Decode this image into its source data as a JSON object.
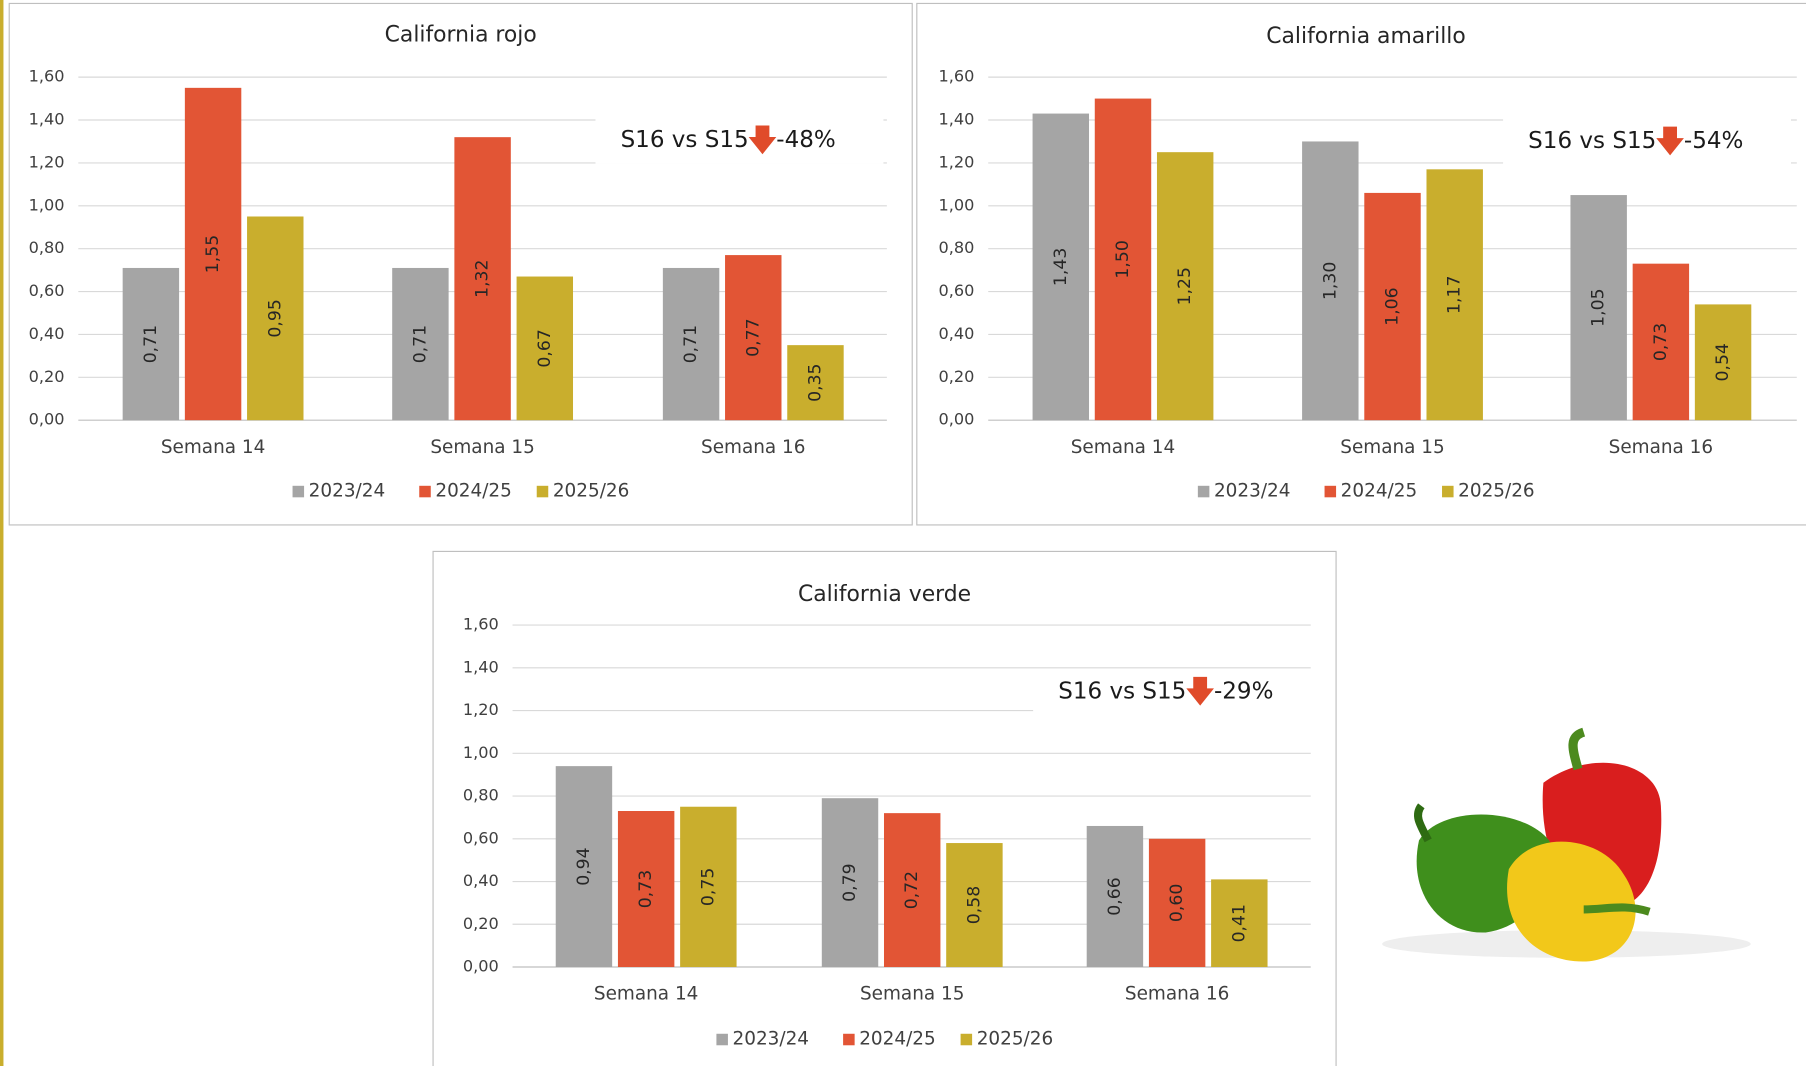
{
  "chart_data": [
    {
      "type": "bar",
      "title": "California rojo",
      "categories": [
        "Semana 14",
        "Semana 15",
        "Semana 16"
      ],
      "series": [
        {
          "name": "2023/24",
          "color": "#a5a5a5",
          "values": [
            0.71,
            0.71,
            0.71
          ],
          "value_labels": [
            "0,71",
            "0,71",
            "0,71"
          ]
        },
        {
          "name": "2024/25",
          "color": "#e25535",
          "values": [
            1.55,
            1.32,
            0.77
          ],
          "value_labels": [
            "1,55",
            "1,32",
            "0,77"
          ]
        },
        {
          "name": "2025/26",
          "color": "#c9ae2d",
          "values": [
            0.95,
            0.67,
            0.35
          ],
          "value_labels": [
            "0,95",
            "0,67",
            "0,35"
          ]
        }
      ],
      "ylim": [
        0,
        1.6
      ],
      "yticks": [
        {
          "value": 0,
          "label": "0,00"
        },
        {
          "value": 0.2,
          "label": "0,20"
        },
        {
          "value": 0.4,
          "label": "0,40"
        },
        {
          "value": 0.6,
          "label": "0,60"
        },
        {
          "value": 0.8,
          "label": "0,80"
        },
        {
          "value": 1,
          "label": "1,00"
        },
        {
          "value": 1.2,
          "label": "1,20"
        },
        {
          "value": 1.4,
          "label": "1,40"
        },
        {
          "value": 1.6,
          "label": "1,60"
        }
      ],
      "grid": true,
      "legend": "bottom",
      "annotation": {
        "text": "S16 vs S15",
        "change": "-48%"
      }
    },
    {
      "type": "bar",
      "title": "California amarillo",
      "categories": [
        "Semana 14",
        "Semana 15",
        "Semana 16"
      ],
      "series": [
        {
          "name": "2023/24",
          "color": "#a5a5a5",
          "values": [
            1.43,
            1.3,
            1.05
          ],
          "value_labels": [
            "1,43",
            "1,30",
            "1,05"
          ]
        },
        {
          "name": "2024/25",
          "color": "#e25535",
          "values": [
            1.5,
            1.06,
            0.73
          ],
          "value_labels": [
            "1,50",
            "1,06",
            "0,73"
          ]
        },
        {
          "name": "2025/26",
          "color": "#c9ae2d",
          "values": [
            1.25,
            1.17,
            0.54
          ],
          "value_labels": [
            "1,25",
            "1,17",
            "0,54"
          ]
        }
      ],
      "ylim": [
        0,
        1.6
      ],
      "yticks": [
        {
          "value": 0,
          "label": "0,00"
        },
        {
          "value": 0.2,
          "label": "0,20"
        },
        {
          "value": 0.4,
          "label": "0,40"
        },
        {
          "value": 0.6,
          "label": "0,60"
        },
        {
          "value": 0.8,
          "label": "0,80"
        },
        {
          "value": 1,
          "label": "1,00"
        },
        {
          "value": 1.2,
          "label": "1,20"
        },
        {
          "value": 1.4,
          "label": "1,40"
        },
        {
          "value": 1.6,
          "label": "1,60"
        }
      ],
      "grid": true,
      "legend": "bottom",
      "annotation": {
        "text": "S16 vs S15",
        "change": "-54%"
      }
    },
    {
      "type": "bar",
      "title": "California verde",
      "categories": [
        "Semana 14",
        "Semana 15",
        "Semana 16"
      ],
      "series": [
        {
          "name": "2023/24",
          "color": "#a5a5a5",
          "values": [
            0.94,
            0.79,
            0.66
          ],
          "value_labels": [
            "0,94",
            "0,79",
            "0,66"
          ]
        },
        {
          "name": "2024/25",
          "color": "#e25535",
          "values": [
            0.73,
            0.72,
            0.6
          ],
          "value_labels": [
            "0,73",
            "0,72",
            "0,60"
          ]
        },
        {
          "name": "2025/26",
          "color": "#c9ae2d",
          "values": [
            0.75,
            0.58,
            0.41
          ],
          "value_labels": [
            "0,75",
            "0,58",
            "0,41"
          ]
        }
      ],
      "ylim": [
        0,
        1.6
      ],
      "yticks": [
        {
          "value": 0,
          "label": "0,00"
        },
        {
          "value": 0.2,
          "label": "0,20"
        },
        {
          "value": 0.4,
          "label": "0,40"
        },
        {
          "value": 0.6,
          "label": "0,60"
        },
        {
          "value": 0.8,
          "label": "0,80"
        },
        {
          "value": 1,
          "label": "1,00"
        },
        {
          "value": 1.2,
          "label": "1,20"
        },
        {
          "value": 1.4,
          "label": "1,40"
        },
        {
          "value": 1.6,
          "label": "1,60"
        }
      ],
      "grid": true,
      "legend": "bottom",
      "annotation": {
        "text": "S16 vs S15",
        "change": "-29%"
      }
    }
  ]
}
